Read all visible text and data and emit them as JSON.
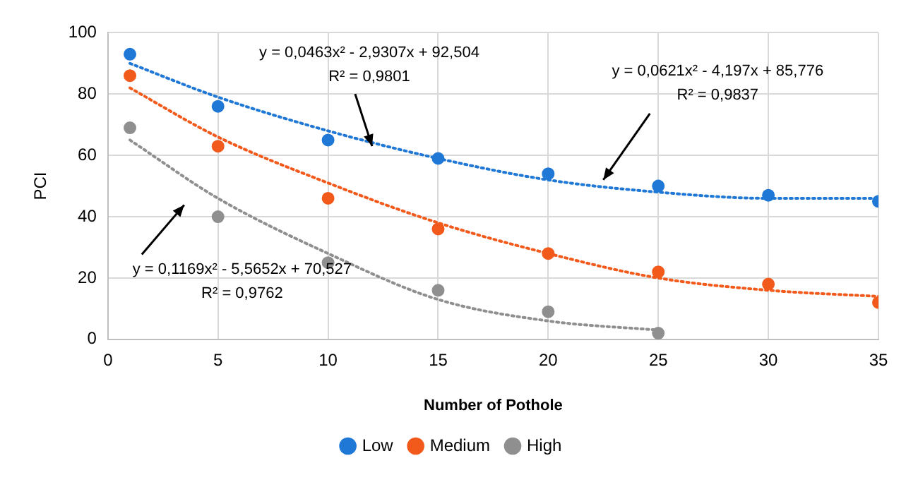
{
  "chart_data": {
    "type": "scatter",
    "xlabel": "Number of Pothole",
    "ylabel": "PCI",
    "xlim": [
      0,
      35
    ],
    "xticks": [
      0,
      5,
      10,
      15,
      20,
      25,
      30,
      35
    ],
    "ylim": [
      0,
      100
    ],
    "yticks": [
      0,
      20,
      40,
      60,
      80,
      100
    ],
    "grid": true,
    "legend": "bottom",
    "marker": "circle",
    "series": [
      {
        "name": "Low",
        "color": "#1f78d6",
        "x": [
          1,
          5,
          10,
          15,
          20,
          25,
          30,
          35
        ],
        "values": [
          93,
          76,
          65,
          59,
          54,
          50,
          47,
          45
        ]
      },
      {
        "name": "Medium",
        "color": "#f25a1c",
        "x": [
          1,
          5,
          10,
          15,
          20,
          25,
          30,
          35
        ],
        "values": [
          86,
          63,
          46,
          36,
          28,
          22,
          18,
          12
        ]
      },
      {
        "name": "High",
        "color": "#8f8f8f",
        "x": [
          1,
          5,
          10,
          15,
          20,
          25
        ],
        "values": [
          69,
          40,
          25,
          16,
          9,
          2
        ]
      },
      {
        "type": "line",
        "color": "#1f78d6",
        "line_style": "dotted",
        "marker": "none",
        "x": [
          1,
          5,
          10,
          15,
          20,
          25,
          30,
          35
        ],
        "values": [
          90,
          79,
          68,
          59,
          52,
          48,
          46,
          46
        ]
      },
      {
        "type": "line",
        "color": "#f25a1c",
        "line_style": "dotted",
        "marker": "none",
        "x": [
          1,
          5,
          10,
          15,
          20,
          25,
          30,
          35
        ],
        "values": [
          82,
          66,
          51,
          38,
          28,
          20,
          16,
          14
        ]
      },
      {
        "type": "line",
        "color": "#8f8f8f",
        "line_style": "dotted",
        "marker": "none",
        "x": [
          1,
          5,
          10,
          15,
          20,
          25
        ],
        "values": [
          65,
          46,
          28,
          13,
          6,
          3
        ]
      }
    ],
    "annotations": [
      {
        "text": "y = 0,0463x² - 2,9307x + 92,504\nR² = 0,9801",
        "x": 12,
        "y": 63
      },
      {
        "text": "y = 0,0621x² - 4,197x + 85,776\nR² = 0,9837",
        "x": 22.5,
        "y": 52
      },
      "y = 0,1169x² - 5,5652x + 70,527\nR² = 0,9762"
    ]
  }
}
